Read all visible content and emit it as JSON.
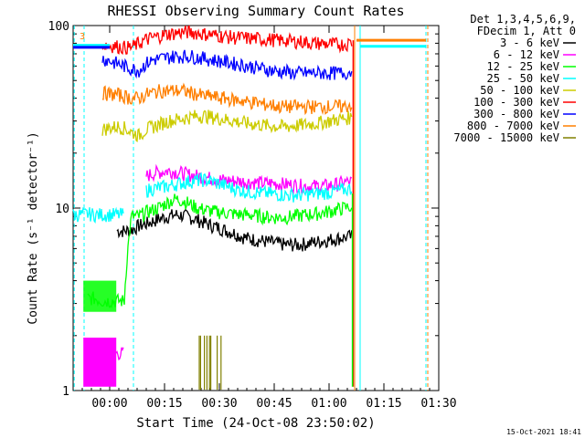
{
  "chart_data": {
    "type": "line",
    "title": "RHESSI Observing Summary Count Rates",
    "xlabel": "Start Time (24-Oct-08 23:50:02)",
    "ylabel": "Count Rate (s⁻¹ detector⁻¹)",
    "ylim": [
      1,
      100
    ],
    "yscale": "log",
    "xlim_minutes": [
      0,
      100
    ],
    "x_ticks": [
      {
        "label": "00:00",
        "t": 10
      },
      {
        "label": "00:15",
        "t": 25
      },
      {
        "label": "00:30",
        "t": 40
      },
      {
        "label": "00:45",
        "t": 55
      },
      {
        "label": "01:00",
        "t": 70
      },
      {
        "label": "01:15",
        "t": 85
      },
      {
        "label": "01:30",
        "t": 100
      }
    ],
    "y_ticks": [
      "1",
      "10",
      "100"
    ],
    "legend_header": [
      "Det 1,3,4,5,6,9,",
      "FDecim 1, Att 0"
    ],
    "legend_position": "right",
    "flag_marker": "3",
    "timestamp": "15-Oct-2021 18:41",
    "x_minutes": [
      0,
      2,
      4,
      6,
      8,
      10,
      12,
      14,
      16,
      18,
      20,
      22,
      24,
      26,
      28,
      30,
      32,
      34,
      36,
      38,
      40,
      42,
      44,
      46,
      48,
      50,
      52,
      54,
      56,
      58,
      60,
      62,
      64,
      66,
      68,
      70,
      72,
      74,
      76.5
    ],
    "vertical_lines": [
      {
        "t": 0.3,
        "color": "#00ffff",
        "style": "dashed"
      },
      {
        "t": 3.0,
        "color": "#00ffff",
        "style": "dashed"
      },
      {
        "t": 16.5,
        "color": "#00ffff",
        "style": "dashed"
      },
      {
        "t": 77.0,
        "color": "#ff7f00",
        "style": "solid"
      },
      {
        "t": 78.5,
        "color": "#00ffff",
        "style": "solid"
      },
      {
        "t": 96.5,
        "color": "#00ffff",
        "style": "dashed"
      },
      {
        "t": 97.0,
        "color": "#ff7f00",
        "style": "dashed"
      }
    ],
    "series": [
      {
        "name": "3 - 6 keV",
        "color": "#000000",
        "values": [
          null,
          null,
          null,
          null,
          null,
          null,
          7.5,
          7.5,
          7.6,
          8,
          8.2,
          8.5,
          8.8,
          9,
          9.2,
          9.1,
          8.9,
          8.6,
          8.3,
          8,
          7.8,
          7.5,
          7.3,
          7,
          6.8,
          6.7,
          6.6,
          6.5,
          6.4,
          6.3,
          6.3,
          6.3,
          6.4,
          6.5,
          6.6,
          6.7,
          6.8,
          6.9,
          7.0
        ]
      },
      {
        "name": "6 - 12 keV",
        "color": "#ff00ff",
        "values": [
          null,
          null,
          1.6,
          1.6,
          1.6,
          1.6,
          1.6,
          1.6,
          null,
          null,
          15,
          15.5,
          15.8,
          16,
          15.8,
          15.5,
          15.2,
          15,
          14.8,
          14.5,
          14.3,
          14.2,
          14.1,
          14,
          13.9,
          13.8,
          13.7,
          13.7,
          13.6,
          13.5,
          13.4,
          13.3,
          13.2,
          13.2,
          13.2,
          13.3,
          13.5,
          13.8,
          14
        ]
      },
      {
        "name": "12 - 25 keV",
        "color": "#00ff00",
        "values": [
          null,
          null,
          3.2,
          3.2,
          3.1,
          3.1,
          3.1,
          3.1,
          9,
          9,
          9.5,
          9.8,
          10.2,
          10.8,
          11.2,
          11,
          10.5,
          10,
          9.8,
          9.6,
          9.5,
          9.4,
          9.3,
          9.2,
          9.2,
          9.1,
          9.0,
          8.9,
          8.9,
          8.9,
          9.0,
          9.1,
          9.2,
          9.3,
          9.4,
          9.6,
          9.8,
          10.0,
          10.2
        ]
      },
      {
        "name": "25 - 50 keV",
        "color": "#00ffff",
        "values": [
          9.2,
          9.2,
          9.3,
          9.2,
          9.2,
          9.2,
          9.2,
          9.2,
          null,
          null,
          12.5,
          12.8,
          13,
          13.2,
          13.5,
          13.8,
          14,
          14.2,
          14.3,
          14,
          13.6,
          13.2,
          12.8,
          12.5,
          12.3,
          12.2,
          12.1,
          12.0,
          11.9,
          11.8,
          11.8,
          11.8,
          11.9,
          12.0,
          12.1,
          12.2,
          12.4,
          12.6,
          12.8
        ]
      },
      {
        "name": "50 - 100 keV",
        "color": "#cccc00",
        "values": [
          null,
          null,
          null,
          null,
          27,
          27.5,
          28,
          27.5,
          26,
          25,
          27,
          28,
          29,
          30,
          30.5,
          31,
          31.5,
          32,
          32,
          31.5,
          31,
          30.5,
          30,
          29.5,
          29,
          28.8,
          28.5,
          28.2,
          28,
          28,
          28.2,
          28.5,
          28.8,
          29,
          29.5,
          30,
          30.5,
          31,
          31.5
        ]
      },
      {
        "name": "100 - 300 keV",
        "color": "#ff0000",
        "values": [
          null,
          null,
          null,
          null,
          79,
          78,
          77,
          76,
          76,
          80,
          84,
          86,
          88,
          90,
          91,
          92,
          92,
          91,
          90,
          89,
          88,
          87,
          86,
          86,
          85,
          85,
          84,
          84,
          83,
          83,
          82,
          82,
          81,
          80,
          80,
          79,
          79,
          79,
          81
        ]
      },
      {
        "name": "300 - 800 keV",
        "color": "#0000ff",
        "values": [
          null,
          null,
          null,
          null,
          66,
          64,
          62,
          60,
          58,
          57,
          62,
          65,
          66,
          67,
          68,
          68,
          68,
          67,
          66,
          65,
          64,
          63,
          62,
          61,
          60,
          59,
          58,
          57,
          56,
          56,
          55,
          55,
          55,
          55,
          55,
          55,
          55,
          55,
          56
        ]
      },
      {
        "name": "800 - 7000 keV",
        "color": "#ff7f00",
        "values": [
          null,
          null,
          null,
          null,
          43,
          42,
          42,
          41,
          40,
          40,
          42,
          43,
          44,
          44,
          44,
          44,
          43,
          42,
          41,
          41,
          40,
          40,
          39,
          39,
          38,
          38,
          37,
          37,
          36,
          36,
          36,
          36,
          36,
          36,
          36,
          36,
          36,
          36,
          37
        ]
      },
      {
        "name": "7000 - 15000 keV",
        "color": "#808000",
        "values": [
          null,
          null,
          null,
          null,
          null,
          null,
          null,
          null,
          null,
          null,
          null,
          null,
          null,
          null,
          null,
          null,
          null,
          null,
          null,
          null,
          null,
          null,
          null,
          null,
          null,
          null,
          null,
          null,
          null,
          null,
          null,
          null,
          null,
          null,
          null,
          null,
          null,
          null,
          null
        ]
      }
    ],
    "segments_after_gap": [
      {
        "name": "800 - 7000 keV",
        "color": "#ff7f00",
        "t_range": [
          77.5,
          96.5
        ],
        "value": 83
      },
      {
        "name": "25 - 50 keV",
        "color": "#00ffff",
        "t_range": [
          78.5,
          96.5
        ],
        "value": 77
      },
      {
        "name": "25 - 50 keV",
        "color": "#00ffff",
        "t_range": [
          0,
          10
        ],
        "value": 78
      },
      {
        "name": "300 - 800 keV",
        "color": "#0000ff",
        "t_range": [
          0,
          10
        ],
        "value": 76
      }
    ],
    "bursts": [
      {
        "name": "7000 - 15000 keV",
        "color": "#808000",
        "t_range": [
          34.5,
          40.5
        ],
        "value": 2.0
      }
    ]
  }
}
